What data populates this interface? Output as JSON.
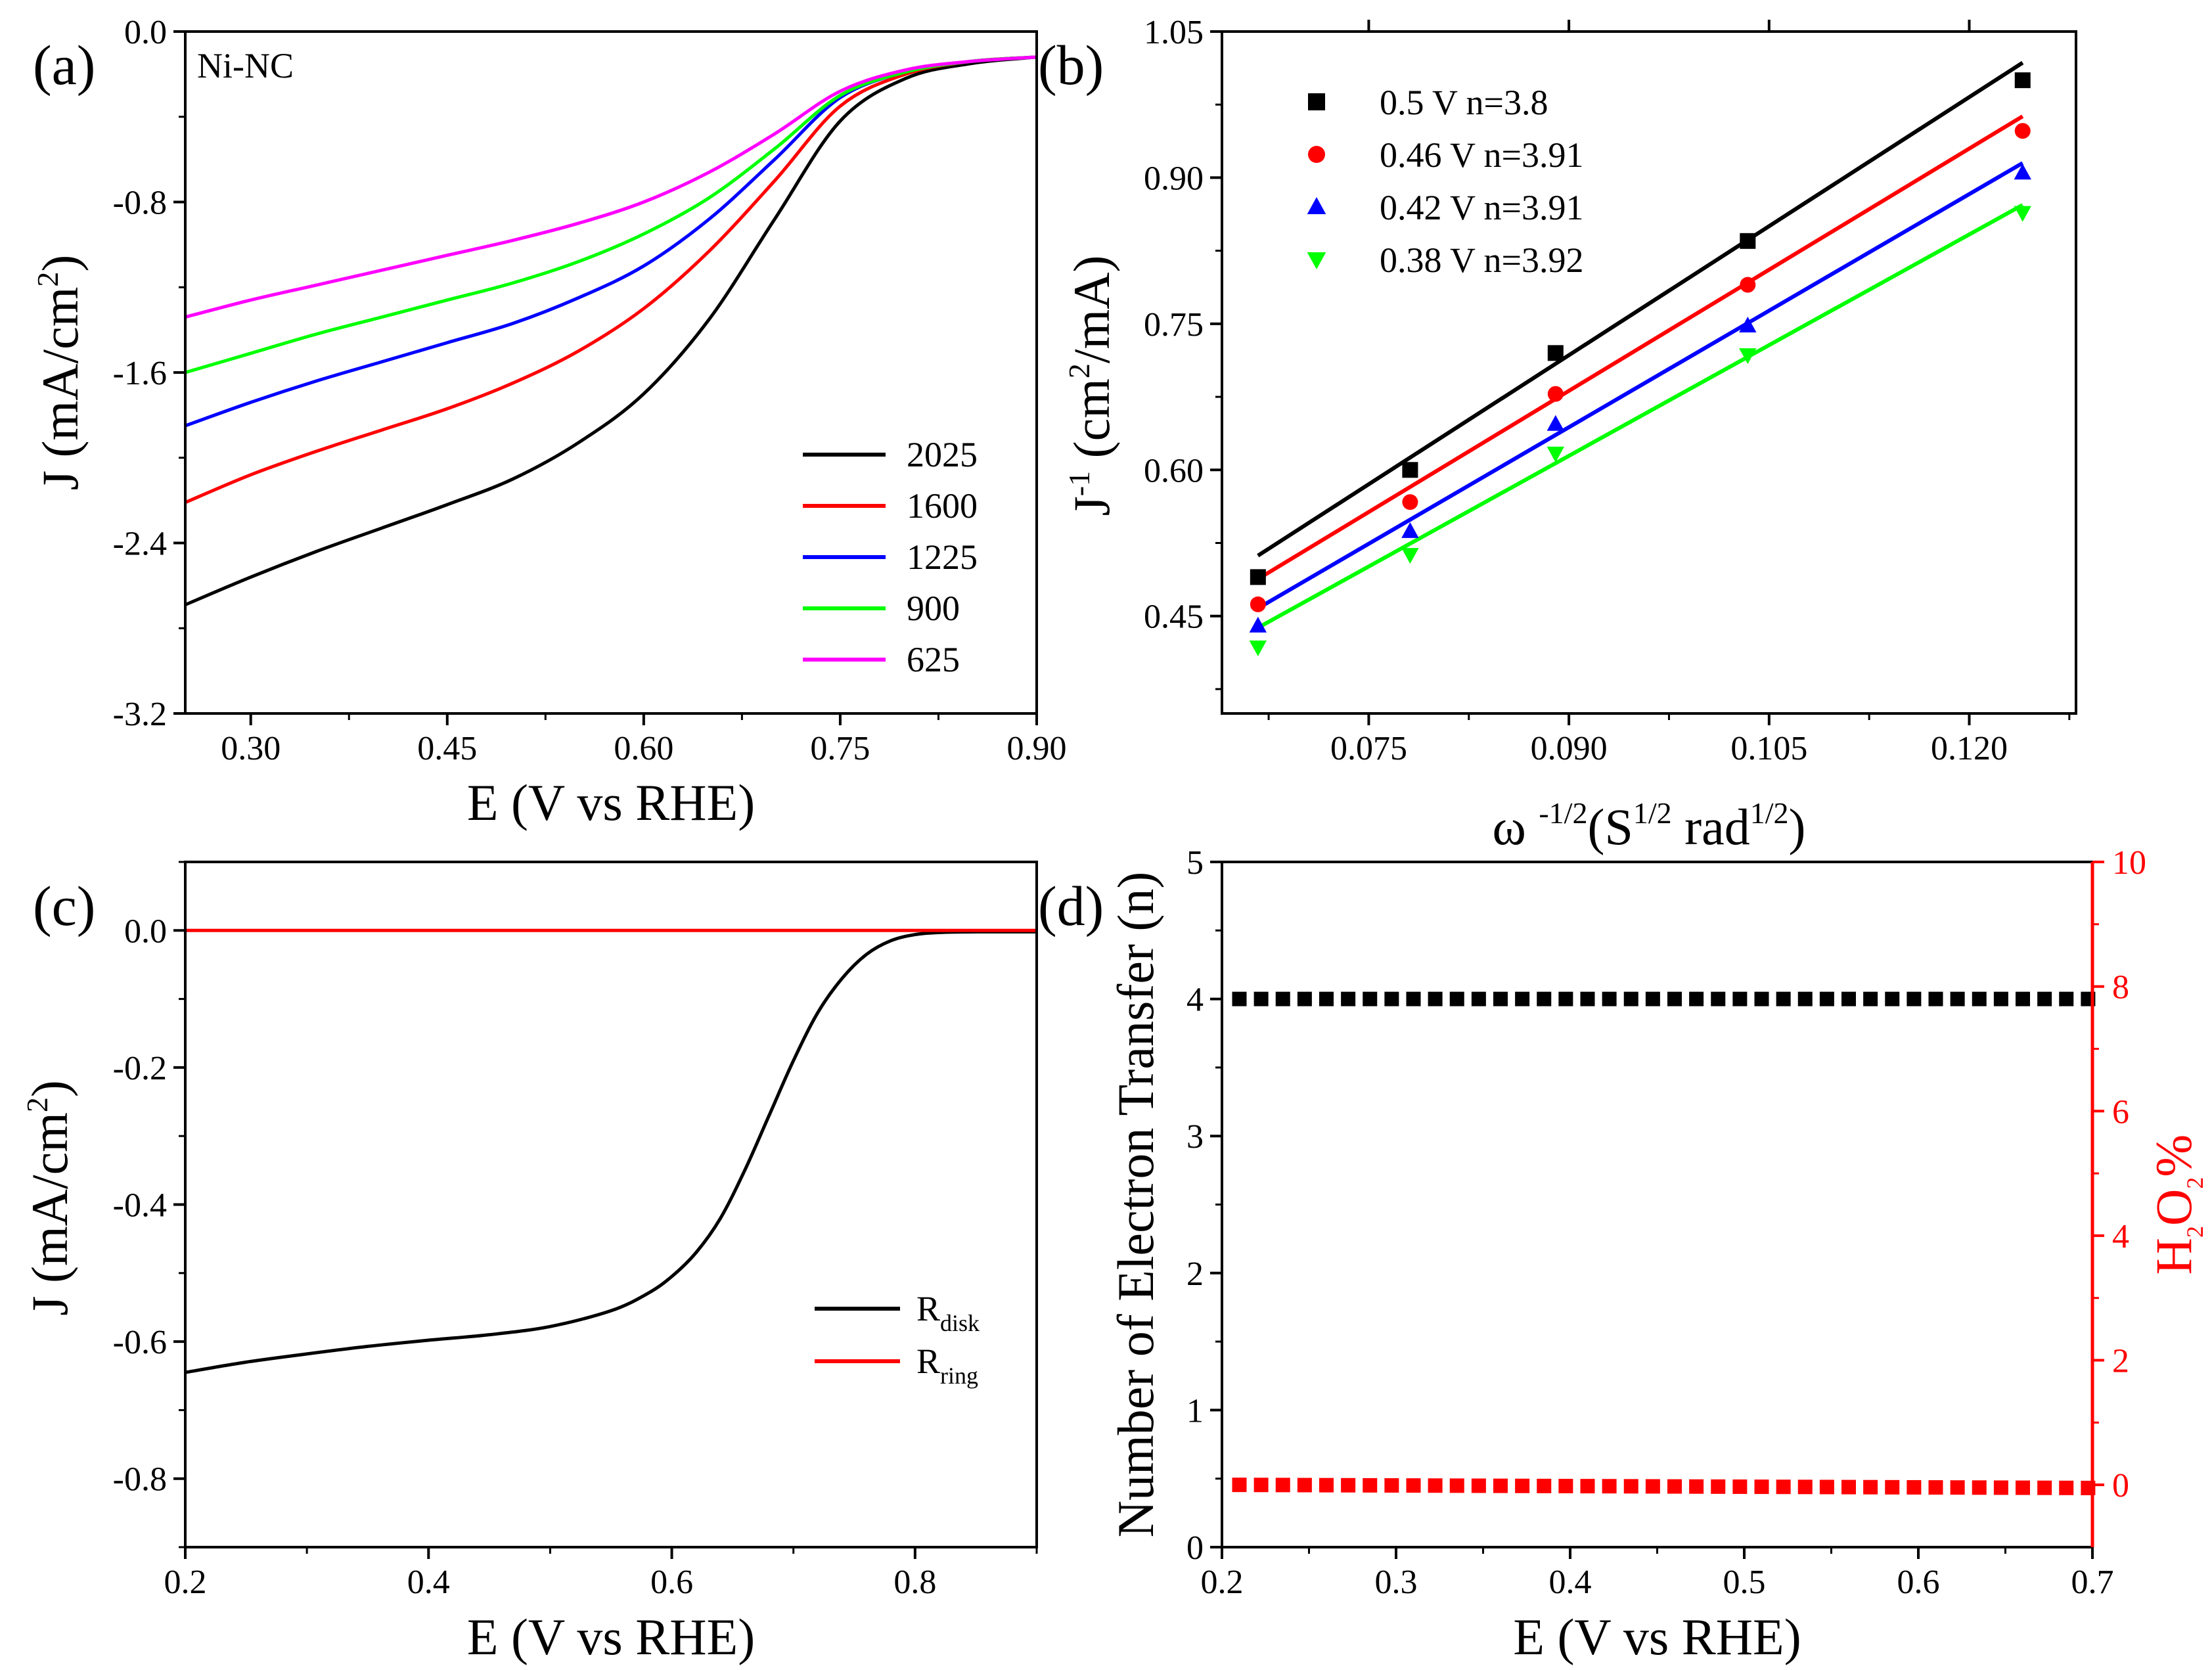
{
  "chart_data": [
    {
      "panel": "a",
      "panel_label": "(a)",
      "type": "line",
      "annotation": "Ni-NC",
      "xlabel": "E (V vs RHE)",
      "ylabel_prefix": "J (mA/cm",
      "ylabel_sup": "2",
      "ylabel_suffix": ")",
      "xlim": [
        0.25,
        0.9
      ],
      "ylim": [
        -3.2,
        0.0
      ],
      "xticks": [
        0.3,
        0.45,
        0.6,
        0.75,
        0.9
      ],
      "xtick_labels": [
        "0.30",
        "0.45",
        "0.60",
        "0.75",
        "0.90"
      ],
      "yticks": [
        0.0,
        -0.8,
        -1.6,
        -2.4,
        -3.2
      ],
      "ytick_labels": [
        "0.0",
        "-0.8",
        "-1.6",
        "-2.4",
        "-3.2"
      ],
      "legend_position": "lower-right",
      "series": [
        {
          "name": "2025",
          "color": "#000000",
          "x": [
            0.25,
            0.3,
            0.35,
            0.4,
            0.45,
            0.5,
            0.55,
            0.6,
            0.65,
            0.7,
            0.75,
            0.8,
            0.85,
            0.9
          ],
          "y": [
            -2.69,
            -2.56,
            -2.44,
            -2.33,
            -2.22,
            -2.1,
            -1.93,
            -1.7,
            -1.35,
            -0.88,
            -0.42,
            -0.22,
            -0.15,
            -0.12
          ]
        },
        {
          "name": "1600",
          "color": "#ff0000",
          "x": [
            0.25,
            0.3,
            0.35,
            0.4,
            0.45,
            0.5,
            0.55,
            0.6,
            0.65,
            0.7,
            0.75,
            0.8,
            0.85,
            0.9
          ],
          "y": [
            -2.21,
            -2.08,
            -1.97,
            -1.87,
            -1.77,
            -1.65,
            -1.5,
            -1.3,
            -1.03,
            -0.7,
            -0.35,
            -0.2,
            -0.14,
            -0.12
          ]
        },
        {
          "name": "1225",
          "color": "#0000ff",
          "x": [
            0.25,
            0.3,
            0.35,
            0.4,
            0.45,
            0.5,
            0.55,
            0.6,
            0.65,
            0.7,
            0.75,
            0.8,
            0.85,
            0.9
          ],
          "y": [
            -1.85,
            -1.74,
            -1.64,
            -1.55,
            -1.46,
            -1.37,
            -1.25,
            -1.1,
            -0.88,
            -0.6,
            -0.31,
            -0.19,
            -0.14,
            -0.12
          ]
        },
        {
          "name": "900",
          "color": "#00ff00",
          "x": [
            0.25,
            0.3,
            0.35,
            0.4,
            0.45,
            0.5,
            0.55,
            0.6,
            0.65,
            0.7,
            0.75,
            0.8,
            0.85,
            0.9
          ],
          "y": [
            -1.6,
            -1.51,
            -1.42,
            -1.34,
            -1.26,
            -1.18,
            -1.08,
            -0.95,
            -0.78,
            -0.55,
            -0.3,
            -0.19,
            -0.14,
            -0.12
          ]
        },
        {
          "name": "625",
          "color": "#ff00ff",
          "x": [
            0.25,
            0.3,
            0.35,
            0.4,
            0.45,
            0.5,
            0.55,
            0.6,
            0.65,
            0.7,
            0.75,
            0.8,
            0.85,
            0.9
          ],
          "y": [
            -1.34,
            -1.26,
            -1.19,
            -1.12,
            -1.05,
            -0.98,
            -0.9,
            -0.8,
            -0.66,
            -0.48,
            -0.28,
            -0.18,
            -0.14,
            -0.12
          ]
        }
      ]
    },
    {
      "panel": "b",
      "panel_label": "(b)",
      "type": "scatter",
      "xlabel_prefix": "ω ",
      "xlabel_sup1": "-1/2",
      "xlabel_mid": "(S",
      "xlabel_sup2": "1/2",
      "xlabel_mid2": " rad",
      "xlabel_sup3": "1/2",
      "xlabel_suffix": ")",
      "ylabel_prefix": "J",
      "ylabel_sup1": "-1",
      "ylabel_mid": " (cm",
      "ylabel_sup2": "2",
      "ylabel_suffix": "/mA)",
      "xlim": [
        0.064,
        0.128
      ],
      "ylim": [
        0.35,
        1.05
      ],
      "xticks": [
        0.075,
        0.09,
        0.105,
        0.12
      ],
      "xtick_labels": [
        "0.075",
        "0.090",
        "0.105",
        "0.120"
      ],
      "yticks": [
        0.45,
        0.6,
        0.75,
        0.9,
        1.05
      ],
      "ytick_labels": [
        "0.45",
        "0.60",
        "0.75",
        "0.90",
        "1.05"
      ],
      "legend_position": "top-left",
      "x": [
        0.0667,
        0.0781,
        0.089,
        0.1034,
        0.124
      ],
      "series": [
        {
          "name": "0.5 V  n=3.8",
          "color": "#000000",
          "marker": "square",
          "values": [
            0.49,
            0.6,
            0.72,
            0.835,
            1.0
          ],
          "fit": [
            0.512,
            1.018
          ]
        },
        {
          "name": "0.46 V  n=3.91",
          "color": "#ff0000",
          "marker": "circle",
          "values": [
            0.462,
            0.567,
            0.678,
            0.79,
            0.948
          ],
          "fit": [
            0.488,
            0.963
          ]
        },
        {
          "name": "0.42 V  n=3.91",
          "color": "#0000ff",
          "marker": "triangle-up",
          "values": [
            0.44,
            0.537,
            0.647,
            0.748,
            0.905
          ],
          "fit": [
            0.458,
            0.915
          ]
        },
        {
          "name": "0.38 V  n=3.92",
          "color": "#00ff00",
          "marker": "triangle-down",
          "values": [
            0.418,
            0.513,
            0.617,
            0.718,
            0.864
          ],
          "fit": [
            0.438,
            0.872
          ]
        }
      ]
    },
    {
      "panel": "c",
      "panel_label": "(c)",
      "type": "line",
      "xlabel": "E (V vs RHE)",
      "ylabel_prefix": "J (mA/cm",
      "ylabel_sup": "2",
      "ylabel_suffix": ")",
      "xlim": [
        0.2,
        0.9
      ],
      "ylim": [
        -0.9,
        0.1
      ],
      "xticks": [
        0.2,
        0.4,
        0.6,
        0.8
      ],
      "xtick_labels": [
        "0.2",
        "0.4",
        "0.6",
        "0.8"
      ],
      "yticks": [
        0.0,
        -0.2,
        -0.4,
        -0.6,
        -0.8
      ],
      "ytick_labels": [
        "0.0",
        "-0.2",
        "-0.4",
        "-0.6",
        "-0.8"
      ],
      "legend_position": "lower-right",
      "series": [
        {
          "name": "R",
          "subscript": "disk",
          "color": "#000000",
          "x": [
            0.2,
            0.25,
            0.3,
            0.35,
            0.4,
            0.45,
            0.5,
            0.55,
            0.58,
            0.6,
            0.62,
            0.64,
            0.66,
            0.68,
            0.7,
            0.72,
            0.74,
            0.76,
            0.78,
            0.8,
            0.82,
            0.85,
            0.9
          ],
          "y": [
            -0.645,
            -0.63,
            -0.618,
            -0.607,
            -0.598,
            -0.59,
            -0.578,
            -0.555,
            -0.53,
            -0.505,
            -0.47,
            -0.42,
            -0.35,
            -0.27,
            -0.19,
            -0.12,
            -0.07,
            -0.035,
            -0.015,
            -0.006,
            -0.003,
            -0.002,
            -0.002
          ]
        },
        {
          "name": "R",
          "subscript": "ring",
          "color": "#ff0000",
          "x": [
            0.2,
            0.9
          ],
          "y": [
            0.0,
            0.0
          ]
        }
      ]
    },
    {
      "panel": "d",
      "panel_label": "(d)",
      "type": "scatter",
      "xlabel": "E (V vs RHE)",
      "ylabel": "Number of  Electron Transfer (n)",
      "ylabel_right_prefix": "H",
      "ylabel_right_sub1": "2",
      "ylabel_right_mid": "O",
      "ylabel_right_sub2": "2",
      "ylabel_right_suffix": "%",
      "xlim": [
        0.2,
        0.7
      ],
      "ylim": [
        0,
        5
      ],
      "ylim_right": [
        -1,
        10
      ],
      "xticks": [
        0.2,
        0.3,
        0.4,
        0.5,
        0.6,
        0.7
      ],
      "xtick_labels": [
        "0.2",
        "0.3",
        "0.4",
        "0.5",
        "0.6",
        "0.7"
      ],
      "yticks": [
        0,
        1,
        2,
        3,
        4,
        5
      ],
      "ytick_labels": [
        "0",
        "1",
        "2",
        "3",
        "4",
        "5"
      ],
      "yticks_right": [
        0,
        2,
        4,
        6,
        8,
        10
      ],
      "ytick_labels_right": [
        "0",
        "2",
        "4",
        "6",
        "8",
        "10"
      ],
      "right_axis_color": "#ff0000",
      "x_start": 0.21,
      "x_end": 0.7,
      "x_step": 0.0125,
      "series": [
        {
          "name": "n",
          "axis": "left",
          "color": "#000000",
          "marker": "square",
          "value": 4.0
        },
        {
          "name": "H2O2%",
          "axis": "right",
          "color": "#ff0000",
          "marker": "square",
          "value_start": 0.0,
          "value_end": -0.05
        }
      ]
    }
  ]
}
